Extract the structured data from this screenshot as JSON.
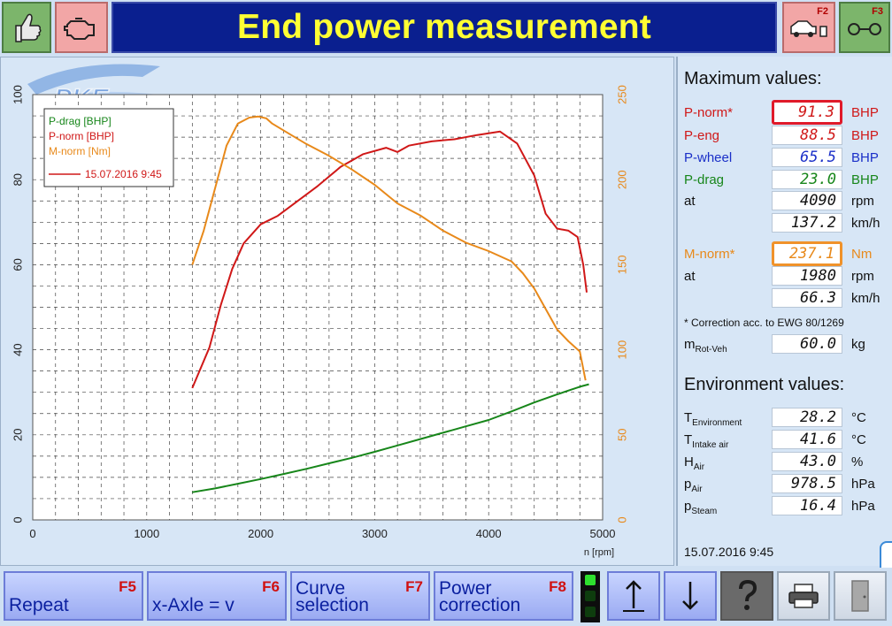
{
  "header": {
    "title": "End power measurement",
    "f2_label": "F2",
    "f3_label": "F3"
  },
  "watermark": "PKE",
  "chart_data": {
    "type": "line",
    "x_axis": {
      "label": "n [rpm]",
      "min": 0,
      "max": 5000,
      "ticks": [
        0,
        1000,
        2000,
        3000,
        4000,
        5000
      ]
    },
    "y_left": {
      "min": 0,
      "max": 100,
      "ticks": [
        0,
        20,
        40,
        60,
        80,
        100
      ]
    },
    "y_right": {
      "min": 0,
      "max": 250,
      "ticks": [
        0,
        50,
        100,
        150,
        200,
        250
      ]
    },
    "grid": true,
    "legend": {
      "placement": "top-left",
      "entries": [
        "P-drag [BHP]",
        "P-norm [BHP]",
        "M-norm [Nm]"
      ],
      "run_label": "15.07.2016 9:45"
    },
    "series": [
      {
        "name": "P-drag [BHP]",
        "axis": "left",
        "color": "#17861a",
        "x": [
          1400,
          1600,
          1800,
          2000,
          2200,
          2400,
          2600,
          2800,
          3000,
          3200,
          3400,
          3600,
          3800,
          4000,
          4200,
          4400,
          4600,
          4800,
          4880
        ],
        "y": [
          6.5,
          7.4,
          8.5,
          9.6,
          10.8,
          12.0,
          13.3,
          14.6,
          16.0,
          17.5,
          19.0,
          20.5,
          22.0,
          23.5,
          25.5,
          27.6,
          29.5,
          31.3,
          31.9
        ]
      },
      {
        "name": "P-norm [BHP]",
        "axis": "left",
        "color": "#d01818",
        "x": [
          1400,
          1550,
          1650,
          1750,
          1850,
          2000,
          2150,
          2300,
          2500,
          2700,
          2900,
          3100,
          3200,
          3300,
          3500,
          3700,
          3900,
          4100,
          4250,
          4400,
          4500,
          4600,
          4700,
          4780,
          4830,
          4860
        ],
        "y": [
          31.0,
          40.5,
          50.5,
          59.0,
          65.0,
          69.5,
          71.5,
          74.5,
          78.5,
          83.0,
          86.0,
          87.5,
          86.5,
          88.0,
          89.0,
          89.5,
          90.5,
          91.3,
          88.5,
          81.0,
          72.0,
          68.5,
          68.0,
          66.5,
          60.0,
          53.5
        ]
      },
      {
        "name": "M-norm [Nm]",
        "axis": "right",
        "color": "#e8891a",
        "x": [
          1400,
          1500,
          1600,
          1700,
          1800,
          1900,
          1980,
          2050,
          2100,
          2250,
          2400,
          2600,
          2800,
          3000,
          3200,
          3400,
          3600,
          3800,
          4000,
          4200,
          4300,
          4400,
          4500,
          4600,
          4700,
          4800,
          4850
        ],
        "y": [
          150,
          170,
          195,
          220,
          233,
          236.5,
          237.1,
          236,
          233,
          227,
          221,
          214,
          206,
          197,
          186,
          179,
          170,
          163,
          158,
          152,
          145,
          136,
          124,
          112,
          105,
          99,
          82
        ]
      }
    ]
  },
  "maximum": {
    "title": "Maximum values:",
    "p_norm": {
      "label": "P-norm*",
      "value": "91.3",
      "unit": "BHP"
    },
    "p_eng": {
      "label": "P-eng",
      "value": "88.5",
      "unit": "BHP"
    },
    "p_wheel": {
      "label": "P-wheel",
      "value": "65.5",
      "unit": "BHP"
    },
    "p_drag": {
      "label": "P-drag",
      "value": "23.0",
      "unit": "BHP"
    },
    "at1": {
      "label": "at",
      "value": "4090",
      "unit": "rpm"
    },
    "speed1": {
      "value": "137.2",
      "unit": "km/h"
    },
    "m_norm": {
      "label": "M-norm*",
      "value": "237.1",
      "unit": "Nm"
    },
    "at2": {
      "label": "at",
      "value": "1980",
      "unit": "rpm"
    },
    "speed2": {
      "value": "66.3",
      "unit": "km/h"
    },
    "correction_note": "* Correction acc. to EWG 80/1269",
    "m_rot": {
      "label": "m",
      "sub": "Rot-Veh",
      "value": "60.0",
      "unit": "kg"
    }
  },
  "environment": {
    "title": "Environment values:",
    "t_env": {
      "label": "T",
      "sub": "Environment",
      "value": "28.2",
      "unit": "°C"
    },
    "t_intake": {
      "label": "T",
      "sub": "Intake air",
      "value": "41.6",
      "unit": "°C"
    },
    "h_air": {
      "label": "H",
      "sub": "Air",
      "value": "43.0",
      "unit": "%"
    },
    "p_air": {
      "label": "p",
      "sub": "Air",
      "value": "978.5",
      "unit": "hPa"
    },
    "p_steam": {
      "label": "p",
      "sub": "Steam",
      "value": "16.4",
      "unit": "hPa"
    }
  },
  "footer_datetime": "15.07.2016  9:45",
  "toolbar": {
    "repeat": {
      "label": "Repeat",
      "key": "F5"
    },
    "x_axle": {
      "label": "x-Axle = v",
      "key": "F6"
    },
    "curve": {
      "label_1": "Curve",
      "label_2": "selection",
      "key": "F7"
    },
    "power": {
      "label_1": "Power",
      "label_2": "correction",
      "key": "F8"
    }
  }
}
